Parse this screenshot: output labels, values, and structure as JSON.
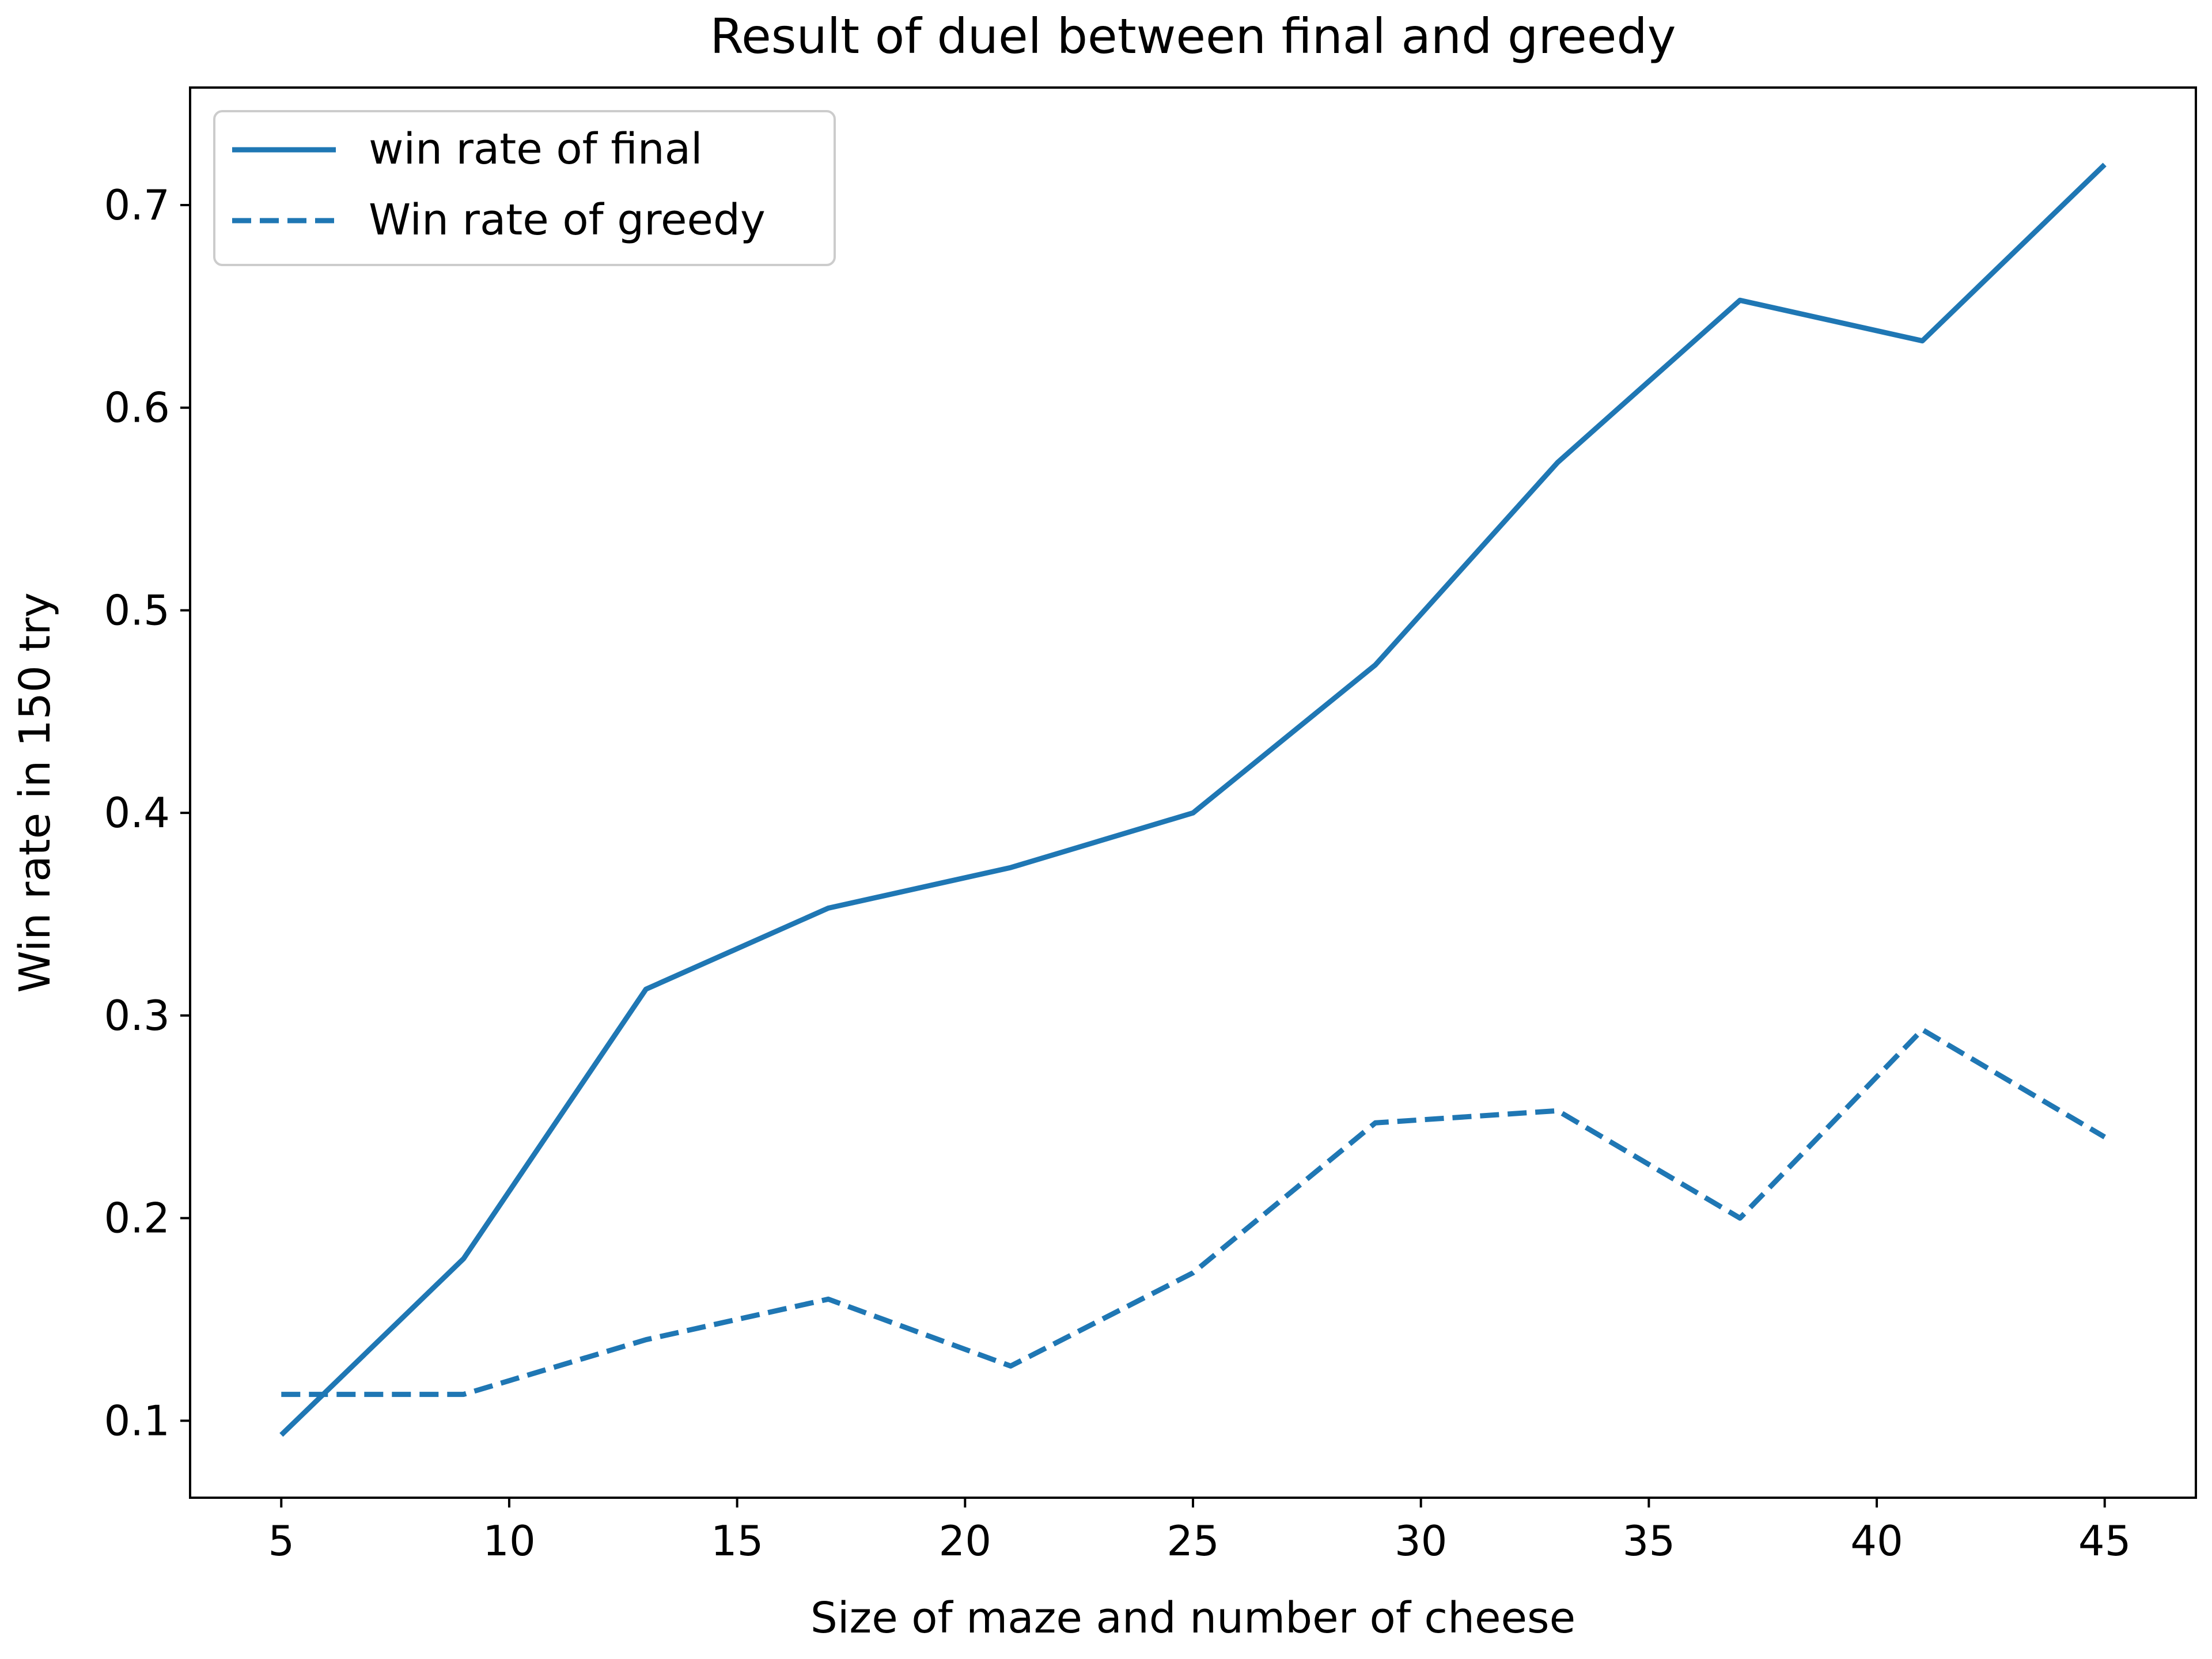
{
  "chart_data": {
    "type": "line",
    "title": "Result of duel between final and greedy",
    "xlabel": "Size of maze and number of cheese",
    "ylabel": "Win rate in 150 try",
    "x": [
      5,
      9,
      13,
      17,
      21,
      25,
      29,
      33,
      37,
      41,
      45
    ],
    "xlim": [
      3,
      47
    ],
    "ylim": [
      0.062,
      0.758
    ],
    "xticks": [
      5,
      10,
      15,
      20,
      25,
      30,
      35,
      40,
      45
    ],
    "yticks": [
      0.1,
      0.2,
      0.3,
      0.4,
      0.5,
      0.6,
      0.7
    ],
    "xtick_labels": [
      "5",
      "10",
      "15",
      "20",
      "25",
      "30",
      "35",
      "40",
      "45"
    ],
    "ytick_labels": [
      "0.1",
      "0.2",
      "0.3",
      "0.4",
      "0.5",
      "0.6",
      "0.7"
    ],
    "grid": false,
    "legend_position": "top-left",
    "series": [
      {
        "name": "win rate of final",
        "color": "#1f77b4",
        "linestyle": "solid",
        "values": [
          0.093,
          0.18,
          0.313,
          0.353,
          0.373,
          0.4,
          0.473,
          0.573,
          0.653,
          0.633,
          0.72
        ]
      },
      {
        "name": "Win rate of greedy",
        "color": "#1f77b4",
        "linestyle": "dashed",
        "values": [
          0.113,
          0.113,
          0.14,
          0.16,
          0.127,
          0.173,
          0.247,
          0.253,
          0.2,
          0.293,
          0.24
        ]
      }
    ]
  }
}
